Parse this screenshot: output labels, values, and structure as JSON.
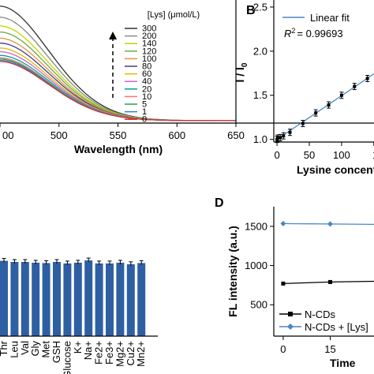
{
  "panels": {
    "b": "B",
    "d": "D"
  },
  "chart_data": [
    {
      "id": "A",
      "type": "line",
      "xlabel": "Wavelength (nm)",
      "x_ticks": [
        "00",
        "500",
        "550",
        "600",
        "650"
      ],
      "xlim": [
        450,
        650
      ],
      "ylim": [
        0,
        1
      ],
      "legend_title": "[Lys] (μmol/L)",
      "legend_placement": "right",
      "series": [
        {
          "name": "300",
          "color": "#333333",
          "peak": 0.95
        },
        {
          "name": "200",
          "color": "#888888",
          "peak": 0.86
        },
        {
          "name": "140",
          "color": "#bdd600",
          "peak": 0.79
        },
        {
          "name": "120",
          "color": "#6aa84f",
          "peak": 0.74
        },
        {
          "name": "100",
          "color": "#e69138",
          "peak": 0.69
        },
        {
          "name": "80",
          "color": "#3d3d8f",
          "peak": 0.65
        },
        {
          "name": "60",
          "color": "#e6b800",
          "peak": 0.61
        },
        {
          "name": "40",
          "color": "#cc66cc",
          "peak": 0.58
        },
        {
          "name": "20",
          "color": "#00a0a0",
          "peak": 0.55
        },
        {
          "name": "10",
          "color": "#ff7373",
          "peak": 0.53
        },
        {
          "name": "5",
          "color": "#1aa64a",
          "peak": 0.52
        },
        {
          "name": "1",
          "color": "#3c78d8",
          "peak": 0.51
        },
        {
          "name": "0",
          "color": "#d93030",
          "peak": 0.5
        }
      ]
    },
    {
      "id": "B",
      "type": "scatter",
      "ylabel": "I / I0",
      "xlabel": "Lysine concent",
      "x_ticks": [
        "0",
        "50",
        "100",
        "15"
      ],
      "y_ticks": [
        "1.0",
        "1.5",
        "2.0",
        "2.5"
      ],
      "xlim": [
        -5,
        160
      ],
      "ylim": [
        0.97,
        2.58
      ],
      "legend": "Linear fit",
      "r2_label": "R",
      "r2_value": "= 0.99693",
      "x": [
        0,
        1,
        5,
        10,
        20,
        40,
        60,
        80,
        100,
        120,
        140
      ],
      "y": [
        1.0,
        1.015,
        1.02,
        1.04,
        1.08,
        1.18,
        1.3,
        1.39,
        1.5,
        1.6,
        1.69
      ],
      "fit": {
        "slope": 0.00495,
        "intercept": 1.0
      }
    },
    {
      "id": "C",
      "type": "bar",
      "categories": [
        "Thr",
        "Leu",
        "Val",
        "Gly",
        "Met",
        "GSH",
        "Glucose",
        "K+",
        "Na+",
        "Fe2+",
        "Fe3+",
        "Mg2+",
        "Cu2+",
        "Mn2+"
      ],
      "values": [
        1.0,
        0.985,
        0.985,
        0.975,
        0.97,
        0.985,
        0.965,
        0.975,
        1.005,
        0.965,
        0.965,
        0.975,
        0.955,
        0.97
      ],
      "ylim": [
        0,
        1.1
      ],
      "color": "#2f5fa3"
    },
    {
      "id": "D",
      "type": "line",
      "ylabel": "FL intensity (a.u.)",
      "xlabel": "Time",
      "x_ticks": [
        "0",
        "15",
        "3"
      ],
      "y_ticks": [
        "500",
        "1000",
        "1500"
      ],
      "xlim": [
        -3,
        33
      ],
      "ylim": [
        100,
        1750
      ],
      "series": [
        {
          "name": "N-CDs",
          "color": "#000000",
          "x": [
            0,
            15,
            30
          ],
          "y": [
            770,
            790,
            800
          ]
        },
        {
          "name": "N-CDs + [Lys]",
          "color": "#4a86c8",
          "x": [
            0,
            15,
            30
          ],
          "y": [
            1535,
            1530,
            1525
          ]
        }
      ]
    }
  ]
}
